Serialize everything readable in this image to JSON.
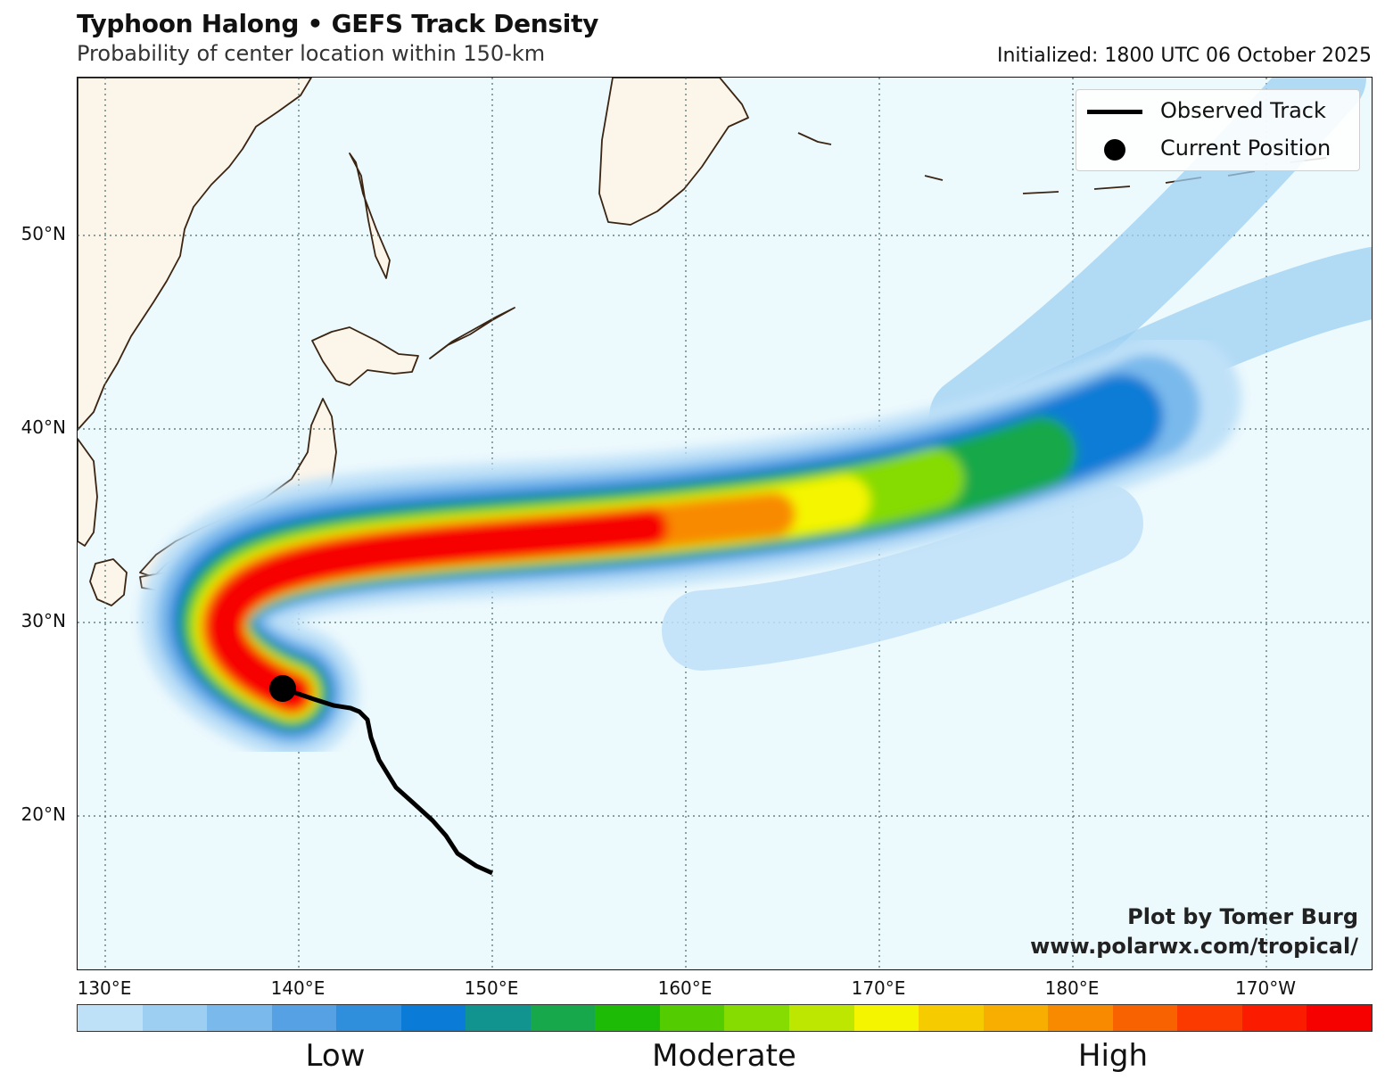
{
  "header": {
    "title": "Typhoon Halong • GEFS Track Density",
    "subtitle": "Probability of center location within 150-km",
    "initialized": "Initialized: 1800 UTC 06 October 2025"
  },
  "axes": {
    "lat_labels": [
      "50°N",
      "40°N",
      "30°N",
      "20°N"
    ],
    "lon_labels": [
      "130°E",
      "140°E",
      "150°E",
      "160°E",
      "170°E",
      "180°E",
      "170°W"
    ]
  },
  "legend": {
    "observed_track": "Observed Track",
    "current_position": "Current Position"
  },
  "credit": {
    "line1": "Plot by Tomer Burg",
    "line2": "www.polarwx.com/tropical/"
  },
  "colorbar": {
    "colors": [
      "#bfe1f8",
      "#9dcff2",
      "#79b9ec",
      "#56a1e3",
      "#2f8fdc",
      "#0a7bd6",
      "#11948f",
      "#16a84a",
      "#1dbb06",
      "#54cc02",
      "#86db00",
      "#bde600",
      "#f5f500",
      "#f6cc00",
      "#f7ae00",
      "#f88a00",
      "#f96200",
      "#fb3a00",
      "#fb1c00",
      "#f70000"
    ],
    "labels": [
      "Low",
      "Moderate",
      "High"
    ]
  },
  "map_data": {
    "current_position": {
      "lat": 26.5,
      "lon": 138.9
    },
    "observed_track": [
      {
        "lat": 17.0,
        "lon": 150.0
      },
      {
        "lat": 17.3,
        "lon": 149.3
      },
      {
        "lat": 18.0,
        "lon": 148.3
      },
      {
        "lat": 19.0,
        "lon": 147.0
      },
      {
        "lat": 20.0,
        "lon": 145.8
      },
      {
        "lat": 20.6,
        "lon": 144.7
      },
      {
        "lat": 21.8,
        "lon": 143.8
      },
      {
        "lat": 23.4,
        "lon": 143.2
      },
      {
        "lat": 24.8,
        "lon": 142.8
      },
      {
        "lat": 25.4,
        "lon": 142.0
      },
      {
        "lat": 25.7,
        "lon": 140.8
      },
      {
        "lat": 26.5,
        "lon": 138.9
      }
    ],
    "density_corridor": "recurving northeast from current position toward 35°N 165°E then 42°N 180°",
    "regions": [
      "Japan",
      "Kamchatka",
      "Kuril Islands",
      "Aleutian Islands",
      "Korea",
      "Russian Far East"
    ]
  }
}
